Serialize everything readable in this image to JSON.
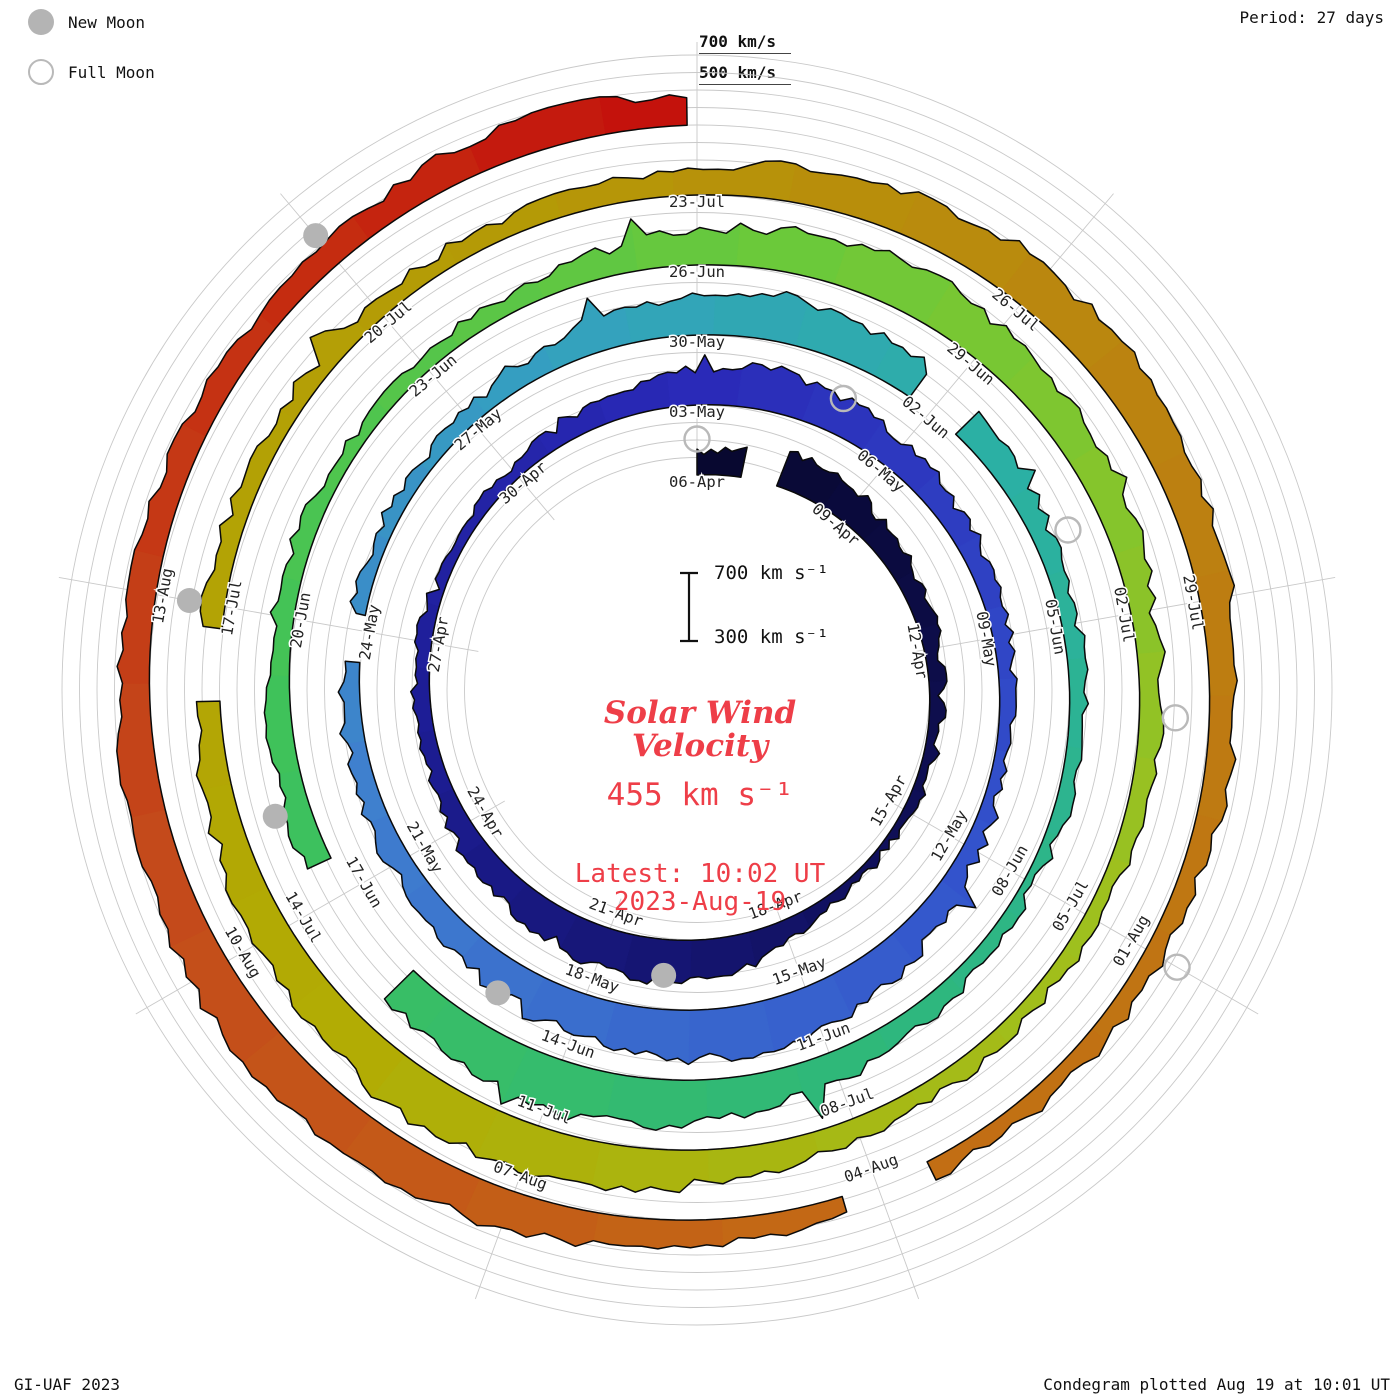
{
  "header": {
    "period_label": "Period: 27 days"
  },
  "legend": {
    "new_moon_label": "New Moon",
    "full_moon_label": "Full Moon"
  },
  "top_scale": {
    "outer_label": "700 km/s",
    "inner_label": "500 km/s"
  },
  "center": {
    "title_line1": "Solar Wind",
    "title_line2": "Velocity",
    "current_value": "455 km s⁻¹",
    "latest_line1": "Latest: 10:02 UT",
    "latest_line2": "2023-Aug-19",
    "scale_top": "700 km s⁻¹",
    "scale_bottom": "300 km s⁻¹"
  },
  "footer": {
    "left": "GI-UAF 2023",
    "right": "Condegram plotted Aug 19 at 10:01 UT"
  },
  "chart_data": {
    "type": "area",
    "layout": "polar_spiral_condegram",
    "title": "Solar Wind Velocity",
    "units": "km/s",
    "period_days": 27,
    "rotations": 5,
    "start_date": "2023-04-06",
    "end_date": "2023-08-19",
    "current": {
      "velocity_km_s": 455,
      "time": "10:02 UT",
      "date": "2023-08-19"
    },
    "radial_axis": {
      "min": 300,
      "max": 700,
      "gridline_step_km_s": 100,
      "labeled_circles": [
        500,
        700
      ]
    },
    "date_labels": [
      {
        "text": "06-Apr",
        "day": 0
      },
      {
        "text": "03-May",
        "day": 27
      },
      {
        "text": "30-May",
        "day": 54
      },
      {
        "text": "26-Jun",
        "day": 81
      },
      {
        "text": "23-Jul",
        "day": 108
      },
      {
        "text": "09-Apr",
        "day": 3
      },
      {
        "text": "06-May",
        "day": 30
      },
      {
        "text": "02-Jun",
        "day": 57
      },
      {
        "text": "29-Jun",
        "day": 84
      },
      {
        "text": "26-Jul",
        "day": 111
      },
      {
        "text": "12-Apr",
        "day": 6
      },
      {
        "text": "09-May",
        "day": 33
      },
      {
        "text": "05-Jun",
        "day": 60
      },
      {
        "text": "02-Jul",
        "day": 87
      },
      {
        "text": "29-Jul",
        "day": 114
      },
      {
        "text": "15-Apr",
        "day": 9
      },
      {
        "text": "12-May",
        "day": 36
      },
      {
        "text": "08-Jun",
        "day": 63
      },
      {
        "text": "05-Jul",
        "day": 90
      },
      {
        "text": "01-Aug",
        "day": 117
      },
      {
        "text": "18-Apr",
        "day": 12
      },
      {
        "text": "15-May",
        "day": 39
      },
      {
        "text": "11-Jun",
        "day": 66
      },
      {
        "text": "08-Jul",
        "day": 93
      },
      {
        "text": "04-Aug",
        "day": 120
      },
      {
        "text": "21-Apr",
        "day": 15
      },
      {
        "text": "18-May",
        "day": 42
      },
      {
        "text": "14-Jun",
        "day": 69
      },
      {
        "text": "11-Jul",
        "day": 96
      },
      {
        "text": "07-Aug",
        "day": 123
      },
      {
        "text": "24-Apr",
        "day": 18
      },
      {
        "text": "21-May",
        "day": 45
      },
      {
        "text": "17-Jun",
        "day": 72
      },
      {
        "text": "14-Jul",
        "day": 99
      },
      {
        "text": "10-Aug",
        "day": 126
      },
      {
        "text": "27-Apr",
        "day": 21
      },
      {
        "text": "24-May",
        "day": 48
      },
      {
        "text": "20-Jun",
        "day": 75
      },
      {
        "text": "17-Jul",
        "day": 102
      },
      {
        "text": "13-Aug",
        "day": 129
      },
      {
        "text": "30-Apr",
        "day": 24
      },
      {
        "text": "27-May",
        "day": 51
      },
      {
        "text": "23-Jun",
        "day": 78
      },
      {
        "text": "20-Jul",
        "day": 105
      }
    ],
    "moons": {
      "new_days": [
        14,
        43,
        73,
        102,
        132
      ],
      "new_dates": [
        "2023-04-20",
        "2023-05-19",
        "2023-06-18",
        "2023-07-17",
        "2023-08-16"
      ],
      "full_days": [
        0,
        29,
        59,
        88,
        117
      ],
      "full_dates": [
        "2023-04-06",
        "2023-05-05",
        "2023-06-04",
        "2023-07-03",
        "2023-08-01"
      ]
    },
    "gaps_days": [
      [
        0.9,
        1.6
      ],
      [
        47.6,
        48.2
      ],
      [
        56.8,
        57.4
      ],
      [
        71.0,
        72.4
      ],
      [
        101.2,
        101.8
      ],
      [
        119.6,
        120.3
      ]
    ],
    "color_stops": [
      [
        0,
        "#08082e"
      ],
      [
        10,
        "#10105a"
      ],
      [
        20,
        "#1d1d96"
      ],
      [
        27,
        "#2a2ab8"
      ],
      [
        36,
        "#3353cc"
      ],
      [
        46,
        "#3f7fce"
      ],
      [
        52,
        "#35a0c0"
      ],
      [
        58,
        "#2bb0a4"
      ],
      [
        66,
        "#2fb878"
      ],
      [
        74,
        "#3fc25a"
      ],
      [
        82,
        "#6cc93a"
      ],
      [
        90,
        "#9fc01e"
      ],
      [
        98,
        "#b2ac04"
      ],
      [
        106,
        "#b49b06"
      ],
      [
        112,
        "#bb8410"
      ],
      [
        120,
        "#c36c14"
      ],
      [
        127,
        "#c4491b"
      ],
      [
        132,
        "#c52b10"
      ],
      [
        135,
        "#c40f0c"
      ]
    ],
    "series_daily": {
      "start": "2023-04-06",
      "step_days": 1,
      "values": [
        430,
        480,
        520,
        490,
        450,
        420,
        400,
        380,
        360,
        350,
        345,
        360,
        420,
        510,
        560,
        540,
        500,
        460,
        430,
        410,
        390,
        380,
        370,
        365,
        380,
        420,
        470,
        520,
        560,
        530,
        490,
        450,
        420,
        400,
        390,
        380,
        400,
        450,
        520,
        580,
        610,
        590,
        550,
        510,
        470,
        440,
        420,
        400,
        390,
        385,
        380,
        400,
        440,
        500,
        550,
        570,
        540,
        500,
        460,
        430,
        410,
        395,
        385,
        380,
        390,
        420,
        470,
        530,
        580,
        600,
        570,
        530,
        490,
        455,
        430,
        410,
        395,
        385,
        390,
        410,
        450,
        510,
        560,
        590,
        560,
        520,
        480,
        450,
        425,
        405,
        395,
        390,
        400,
        430,
        480,
        540,
        580,
        600,
        570,
        530,
        490,
        455,
        430,
        410,
        400,
        395,
        405,
        430,
        470,
        520,
        560,
        580,
        555,
        520,
        485,
        455,
        430,
        415,
        405,
        400,
        410,
        440,
        480,
        530,
        570,
        590,
        565,
        530,
        495,
        465,
        445,
        430,
        445,
        480,
        530,
        455
      ]
    }
  }
}
